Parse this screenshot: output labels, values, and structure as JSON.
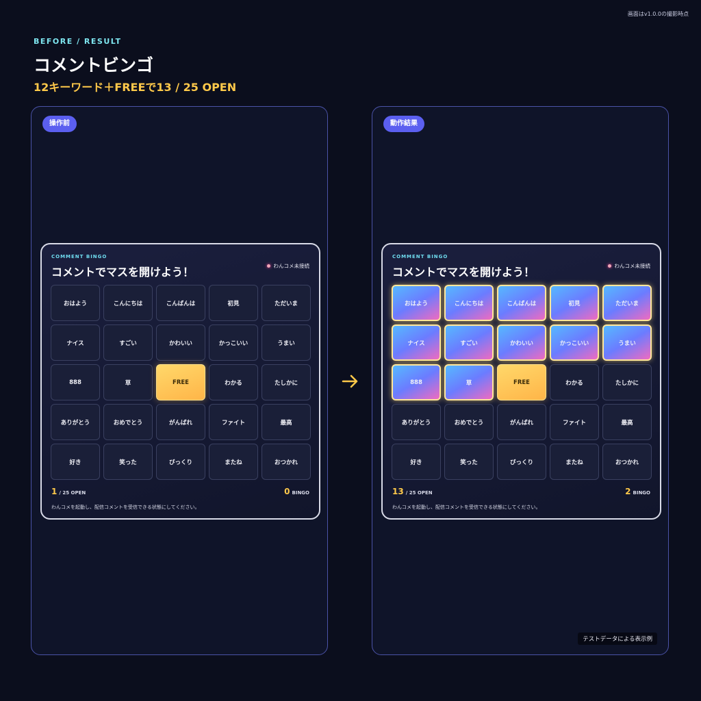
{
  "corner_note": "画面はv1.0.0の撮影時点",
  "header": {
    "eyebrow": "BEFORE / RESULT",
    "title": "コメントビンゴ",
    "subtitle": "12キーワード＋FREEで13 / 25 OPEN"
  },
  "card": {
    "eyebrow": "COMMENT BINGO",
    "title": "コメントでマスを開けよう！",
    "status": "わんコメ未接続",
    "cells": [
      "おはよう",
      "こんにちは",
      "こんばんは",
      "初見",
      "ただいま",
      "ナイス",
      "すごい",
      "かわいい",
      "かっこいい",
      "うまい",
      "888",
      "草",
      "FREE",
      "わかる",
      "たしかに",
      "ありがとう",
      "おめでとう",
      "がんばれ",
      "ファイト",
      "最高",
      "好き",
      "笑った",
      "びっくり",
      "またね",
      "おつかれ"
    ],
    "open_label": "/ 25 OPEN",
    "bingo_label": "BINGO",
    "notice": "わんコメを起動し、配信コメントを受信できる状態にしてください。"
  },
  "panels": [
    {
      "badge": "操作前",
      "open_count": 1,
      "bingo_count": 0,
      "cell_states": [
        "closed",
        "closed",
        "closed",
        "closed",
        "closed",
        "closed",
        "closed",
        "closed",
        "closed",
        "closed",
        "closed",
        "closed",
        "free",
        "closed",
        "closed",
        "closed",
        "closed",
        "closed",
        "closed",
        "closed",
        "closed",
        "closed",
        "closed",
        "closed",
        "closed"
      ]
    },
    {
      "badge": "動作結果",
      "open_count": 13,
      "bingo_count": 2,
      "footnote": "テストデータによる表示例",
      "cell_states": [
        "open",
        "open",
        "open",
        "open",
        "open",
        "open",
        "open",
        "open",
        "open",
        "open",
        "open",
        "open",
        "free",
        "closed",
        "closed",
        "closed",
        "closed",
        "closed",
        "closed",
        "closed",
        "closed",
        "closed",
        "closed",
        "closed",
        "closed"
      ]
    }
  ]
}
